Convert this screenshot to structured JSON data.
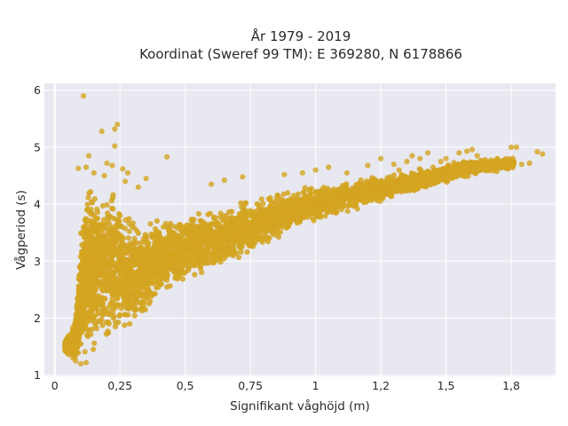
{
  "chart_data": {
    "type": "scatter",
    "title": [
      "År 1979 - 2019",
      "Koordinat (Sweref 99 TM): E 369280, N 6178866"
    ],
    "xlabel": "Signifikant våghöjd (m)",
    "ylabel": "Vågperiod (s)",
    "xlim": [
      -0.04,
      1.92
    ],
    "ylim": [
      0.98,
      6.12
    ],
    "x_ticks": [
      0,
      0.25,
      0.5,
      0.75,
      1,
      1.25,
      1.5,
      1.75
    ],
    "x_tick_labels": [
      "0",
      "0,25",
      "0,5",
      "0,75",
      "1",
      "1,2",
      "1,5",
      "1,8"
    ],
    "y_ticks": [
      1,
      2,
      3,
      4,
      5,
      6
    ],
    "y_tick_labels": [
      "1",
      "2",
      "3",
      "4",
      "5",
      "6"
    ],
    "grid": true,
    "legend": "none",
    "marker_color": "#d4a421",
    "plot_background": "#e8e8f0",
    "envelope_lower": [
      [
        0.04,
        1.4
      ],
      [
        0.08,
        1.22
      ],
      [
        0.1,
        1.18
      ],
      [
        0.15,
        1.2
      ],
      [
        0.2,
        1.35
      ],
      [
        0.25,
        1.6
      ],
      [
        0.3,
        1.75
      ],
      [
        0.35,
        2.0
      ],
      [
        0.4,
        2.3
      ],
      [
        0.5,
        2.6
      ],
      [
        0.6,
        2.8
      ],
      [
        0.75,
        3.1
      ],
      [
        0.9,
        3.45
      ],
      [
        1.0,
        3.65
      ],
      [
        1.2,
        3.95
      ],
      [
        1.4,
        4.2
      ],
      [
        1.6,
        4.5
      ],
      [
        1.75,
        4.6
      ]
    ],
    "envelope_upper": [
      [
        0.04,
        1.6
      ],
      [
        0.08,
        2.0
      ],
      [
        0.1,
        3.8
      ],
      [
        0.12,
        4.5
      ],
      [
        0.15,
        4.55
      ],
      [
        0.2,
        4.4
      ],
      [
        0.25,
        4.2
      ],
      [
        0.3,
        3.8
      ],
      [
        0.4,
        3.8
      ],
      [
        0.5,
        3.85
      ],
      [
        0.6,
        3.95
      ],
      [
        0.75,
        4.1
      ],
      [
        0.9,
        4.3
      ],
      [
        1.0,
        4.35
      ],
      [
        1.2,
        4.5
      ],
      [
        1.4,
        4.65
      ],
      [
        1.6,
        4.8
      ],
      [
        1.75,
        4.85
      ]
    ],
    "points": [
      [
        0.11,
        5.9
      ],
      [
        0.18,
        5.28
      ],
      [
        0.23,
        5.32
      ],
      [
        0.24,
        5.4
      ],
      [
        0.23,
        5.02
      ],
      [
        0.43,
        4.83
      ],
      [
        0.09,
        4.63
      ],
      [
        0.12,
        4.65
      ],
      [
        0.15,
        4.55
      ],
      [
        0.26,
        4.62
      ],
      [
        0.28,
        4.55
      ],
      [
        0.35,
        4.45
      ],
      [
        0.2,
        4.72
      ],
      [
        0.13,
        4.85
      ],
      [
        0.22,
        4.68
      ],
      [
        0.19,
        4.5
      ],
      [
        0.27,
        4.4
      ],
      [
        0.32,
        4.3
      ],
      [
        0.6,
        4.35
      ],
      [
        0.65,
        4.42
      ],
      [
        0.72,
        4.48
      ],
      [
        0.88,
        4.52
      ],
      [
        0.95,
        4.55
      ],
      [
        1.0,
        4.6
      ],
      [
        1.05,
        4.65
      ],
      [
        1.12,
        4.55
      ],
      [
        1.2,
        4.68
      ],
      [
        1.25,
        4.8
      ],
      [
        1.3,
        4.7
      ],
      [
        1.32,
        4.6
      ],
      [
        1.35,
        4.75
      ],
      [
        1.37,
        4.85
      ],
      [
        1.4,
        4.8
      ],
      [
        1.43,
        4.9
      ],
      [
        1.45,
        4.65
      ],
      [
        1.48,
        4.75
      ],
      [
        1.5,
        4.8
      ],
      [
        1.52,
        4.62
      ],
      [
        1.55,
        4.9
      ],
      [
        1.58,
        4.93
      ],
      [
        1.6,
        4.96
      ],
      [
        1.62,
        4.85
      ],
      [
        1.65,
        4.78
      ],
      [
        1.67,
        4.7
      ],
      [
        1.7,
        4.68
      ],
      [
        1.72,
        4.65
      ],
      [
        1.73,
        4.8
      ],
      [
        1.75,
        5.0
      ],
      [
        1.77,
        5.0
      ],
      [
        1.79,
        4.7
      ],
      [
        1.82,
        4.72
      ],
      [
        1.85,
        4.92
      ],
      [
        1.87,
        4.88
      ],
      [
        1.63,
        4.6
      ],
      [
        1.55,
        4.55
      ],
      [
        1.47,
        4.5
      ],
      [
        1.42,
        4.45
      ],
      [
        1.57,
        4.68
      ],
      [
        1.53,
        4.73
      ],
      [
        1.66,
        4.62
      ],
      [
        0.07,
        1.3
      ],
      [
        0.05,
        1.45
      ],
      [
        0.04,
        1.5
      ],
      [
        0.08,
        1.25
      ],
      [
        0.1,
        1.2
      ],
      [
        0.12,
        1.22
      ],
      [
        0.1,
        2.0
      ],
      [
        0.12,
        1.9
      ],
      [
        0.09,
        2.2
      ],
      [
        0.1,
        2.9
      ],
      [
        0.11,
        3.6
      ],
      [
        0.15,
        3.5
      ]
    ]
  }
}
